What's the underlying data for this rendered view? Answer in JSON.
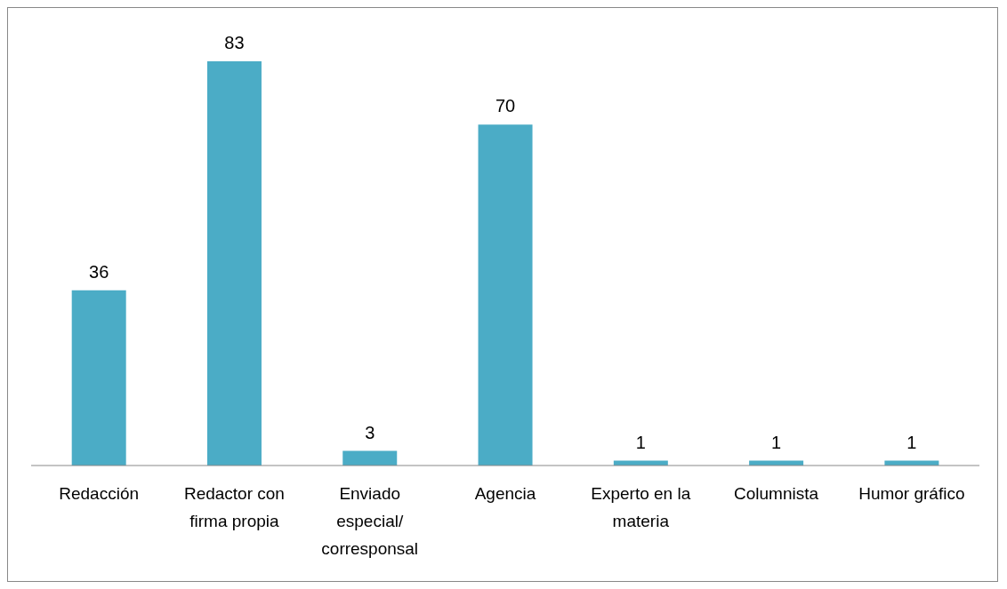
{
  "chart_data": {
    "type": "bar",
    "categories": [
      "Redacción",
      "Redactor con firma propia",
      "Enviado especial/ corresponsal",
      "Agencia",
      "Experto en la materia",
      "Columnista",
      "Humor gráfico"
    ],
    "values": [
      36,
      83,
      3,
      70,
      1,
      1,
      1
    ],
    "color": "#4bacc6",
    "data_labels": true
  }
}
